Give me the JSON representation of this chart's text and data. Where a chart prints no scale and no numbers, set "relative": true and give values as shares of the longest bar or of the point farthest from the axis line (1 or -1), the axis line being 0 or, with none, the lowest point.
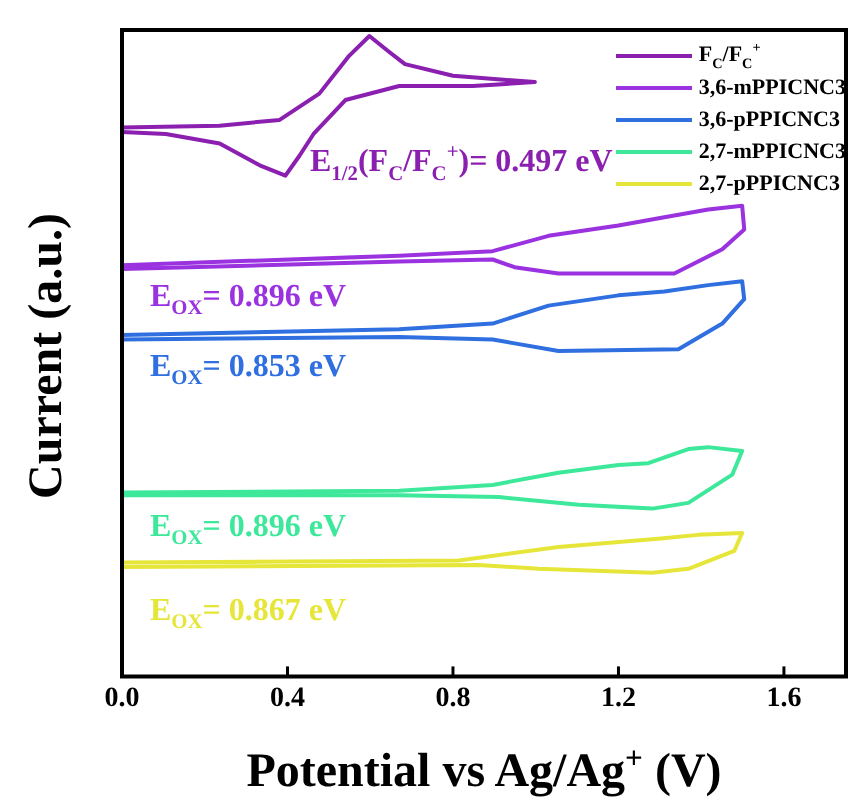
{
  "chart_data": {
    "type": "line",
    "relative": true,
    "xlabel": "Potential vs Ag/Ag$^{+}$ (V)",
    "ylabel": "Current (a.u.)",
    "xlim": [
      0,
      1.75
    ],
    "xticks": [
      {
        "value": 0,
        "label": "0.0"
      },
      0.4,
      0.8,
      1.2,
      1.6
    ],
    "tick_labels": "x",
    "legend": "top right",
    "marker": "none",
    "line_style": "solid",
    "grid": false,
    "series": [
      {
        "name": "F$_{C}$/F$_{C}$$^{+}$",
        "color": "#8a1fb0",
        "x": [
          0,
          0.236,
          0.381,
          0.477,
          0.549,
          0.598,
          0.646,
          0.684,
          0.8,
          0.998,
          0.848,
          0.67,
          0.54,
          0.463,
          0.429,
          0.395,
          0.333,
          0.236,
          0.106,
          0
        ],
        "values": [
          0.857,
          0.86,
          0.869,
          0.91,
          0.969,
          1,
          0.975,
          0.956,
          0.938,
          0.928,
          0.922,
          0.922,
          0.9,
          0.847,
          0.813,
          0.782,
          0.798,
          0.832,
          0.847,
          0.85
        ]
      },
      {
        "name": "3,6-mPPICNC3",
        "color": "#9a32e0",
        "x": [
          0,
          0.67,
          0.896,
          1.031,
          1.2,
          1.311,
          1.417,
          1.499,
          1.504,
          1.451,
          1.335,
          1.055,
          0.949,
          0.896,
          0.67,
          0
        ],
        "values": [
          0.642,
          0.657,
          0.664,
          0.688,
          0.704,
          0.717,
          0.729,
          0.735,
          0.698,
          0.667,
          0.629,
          0.629,
          0.639,
          0.651,
          0.648,
          0.636
        ]
      },
      {
        "name": "3,6-pPPICNC3",
        "color": "#2f6fe0",
        "x": [
          0,
          0.67,
          0.896,
          1.031,
          1.2,
          1.311,
          1.417,
          1.499,
          1.504,
          1.451,
          1.345,
          1.055,
          0.949,
          0.896,
          0.67,
          0
        ],
        "values": [
          0.533,
          0.542,
          0.551,
          0.579,
          0.595,
          0.601,
          0.611,
          0.617,
          0.589,
          0.551,
          0.511,
          0.508,
          0.52,
          0.526,
          0.53,
          0.526
        ]
      },
      {
        "name": "2,7-mPPICNC3",
        "color": "#3ee89a",
        "x": [
          0,
          0.67,
          0.896,
          1.055,
          1.2,
          1.272,
          1.369,
          1.417,
          1.499,
          1.475,
          1.369,
          1.282,
          1.104,
          0.911,
          0.67,
          0
        ],
        "values": [
          0.287,
          0.29,
          0.299,
          0.318,
          0.33,
          0.333,
          0.355,
          0.358,
          0.352,
          0.315,
          0.271,
          0.262,
          0.268,
          0.28,
          0.283,
          0.283
        ]
      },
      {
        "name": "2,7-pPPICNC3",
        "color": "#e6e63a",
        "x": [
          0,
          0.814,
          1.055,
          1.296,
          1.393,
          1.499,
          1.48,
          1.369,
          1.282,
          1.007,
          0.863,
          0
        ],
        "values": [
          0.178,
          0.181,
          0.202,
          0.215,
          0.221,
          0.224,
          0.196,
          0.168,
          0.162,
          0.168,
          0.174,
          0.171
        ]
      }
    ],
    "annotations": [
      "E$_{1/2}$(F$_{C}$/F$_{C}$$^{+}$)= 0.497 eV",
      "E$_{OX}$= 0.896 eV",
      "E$_{OX}$= 0.853 eV",
      "E$_{OX}$= 0.896 eV",
      "E$_{OX}$= 0.867 eV"
    ]
  }
}
